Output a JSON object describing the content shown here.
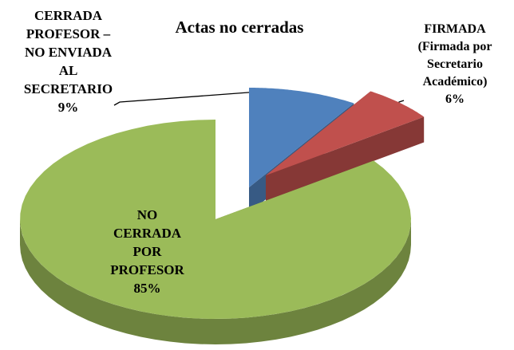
{
  "chart_data": {
    "type": "pie",
    "title": "Actas no cerradas",
    "categories": [
      "CERRADA PROFESOR – NO ENVIADA AL SECRETARIO",
      "FIRMADA (Firmada por Secretario Académico)",
      "NO CERRADA POR PROFESOR"
    ],
    "values": [
      9,
      6,
      85
    ],
    "value_labels": [
      "9%",
      "6%",
      "85%"
    ],
    "colors": [
      "#4f81bd",
      "#c0504d",
      "#9bbb59"
    ]
  }
}
